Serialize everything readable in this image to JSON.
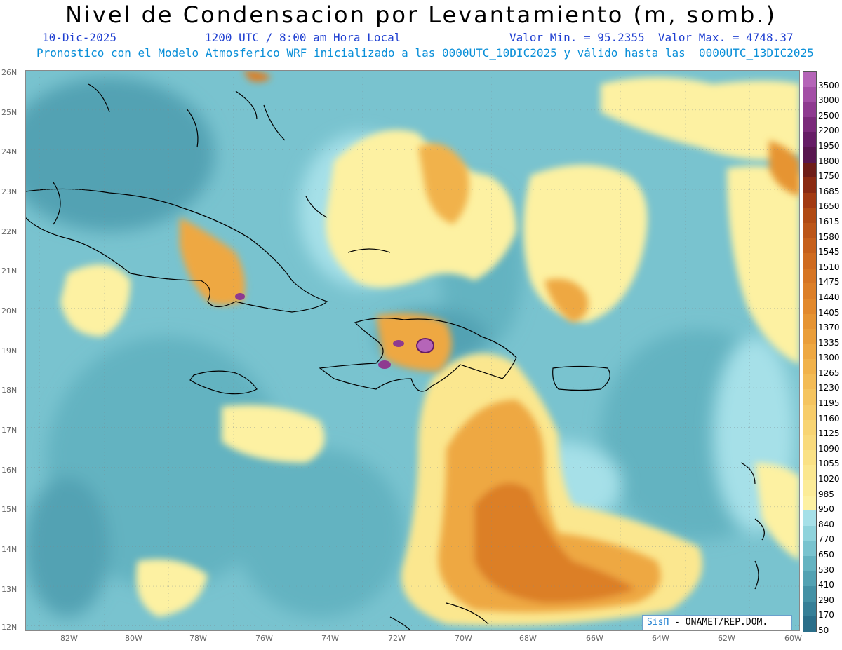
{
  "header": {
    "title": "Nivel de Condensacion por Levantamiento (m, somb.)",
    "date": "10-Dic-2025",
    "time": "1200 UTC / 8:00 am Hora Local",
    "range": "Valor Min. = 95.2355  Valor Max. = 4748.37",
    "forecast": "Pronostico con el Modelo Atmosferico WRF inicializado a las 0000UTC_10DIC2025 y válido hasta las  0000UTC_13DIC2025"
  },
  "axes": {
    "lat_labels": [
      "26N",
      "25N",
      "24N",
      "23N",
      "22N",
      "21N",
      "20N",
      "19N",
      "18N",
      "17N",
      "16N",
      "15N",
      "14N",
      "13N",
      "12N"
    ],
    "lon_labels": [
      "82W",
      "80W",
      "78W",
      "76W",
      "74W",
      "72W",
      "70W",
      "68W",
      "66W",
      "64W",
      "62W",
      "60W"
    ]
  },
  "colorbar": {
    "levels": [
      "3500",
      "3000",
      "2500",
      "2200",
      "1950",
      "1800",
      "1750",
      "1685",
      "1650",
      "1615",
      "1580",
      "1545",
      "1510",
      "1475",
      "1440",
      "1405",
      "1370",
      "1335",
      "1300",
      "1265",
      "1230",
      "1195",
      "1160",
      "1125",
      "1090",
      "1055",
      "1020",
      "985",
      "950",
      "840",
      "770",
      "650",
      "530",
      "410",
      "290",
      "170",
      "50"
    ],
    "colors": [
      "#b565b8",
      "#a34fa6",
      "#8e3a90",
      "#7a2a7a",
      "#661d66",
      "#58164f",
      "#6e1d18",
      "#8a2a12",
      "#a23a12",
      "#b04a14",
      "#bb5518",
      "#c6601c",
      "#cf6b20",
      "#d67524",
      "#dc7f28",
      "#e2892d",
      "#e69433",
      "#ea9e3a",
      "#eea842",
      "#f1b24b",
      "#f3bb55",
      "#f5c45f",
      "#f7cc69",
      "#f8d473",
      "#f9da7c",
      "#fae185",
      "#fbe78f",
      "#fcec98",
      "#fdf1a2",
      "#a6e0e8",
      "#8fd3dc",
      "#79c3cf",
      "#64b3c1",
      "#53a2b3",
      "#4491a5",
      "#367f97",
      "#2a6e89"
    ]
  },
  "credit": {
    "brand": "SisΠ",
    "text": "- ONAMET/REP.DOM."
  }
}
